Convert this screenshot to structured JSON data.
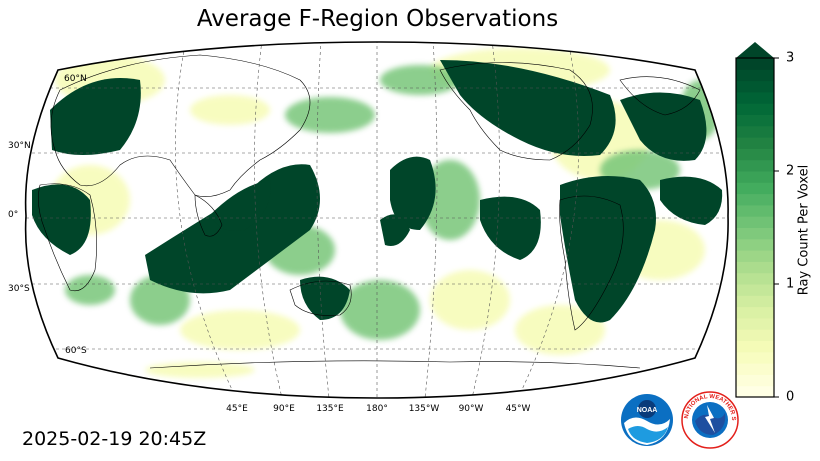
{
  "title": "Average F-Region Observations",
  "timestamp": "2025-02-19 20:45Z",
  "map": {
    "projection": "Robinson",
    "central_longitude": 180,
    "latitude_labels": [
      "60°N",
      "30°N",
      "0°",
      "30°S",
      "60°S"
    ],
    "longitude_labels": [
      "45°E",
      "90°E",
      "135°E",
      "180°",
      "135°W",
      "90°W",
      "45°W"
    ],
    "gridlines": true,
    "coastlines": true,
    "borders": true
  },
  "colorbar": {
    "label": "Ray Count Per Voxel",
    "ticks": [
      "0",
      "1",
      "2",
      "3"
    ],
    "range": [
      0,
      3
    ],
    "extend": "max",
    "colormap": "YlGn",
    "colors": [
      "#ffffe5",
      "#f7fcb9",
      "#d9f0a3",
      "#addd8e",
      "#78c679",
      "#41ab5d",
      "#238443",
      "#006837",
      "#004529"
    ]
  },
  "logos": {
    "noaa": {
      "text": "NOAA",
      "color": "#0b6fc2"
    },
    "nws": {
      "text": "NATIONAL WEATHER SERVICE",
      "color": "#e3201b"
    }
  }
}
